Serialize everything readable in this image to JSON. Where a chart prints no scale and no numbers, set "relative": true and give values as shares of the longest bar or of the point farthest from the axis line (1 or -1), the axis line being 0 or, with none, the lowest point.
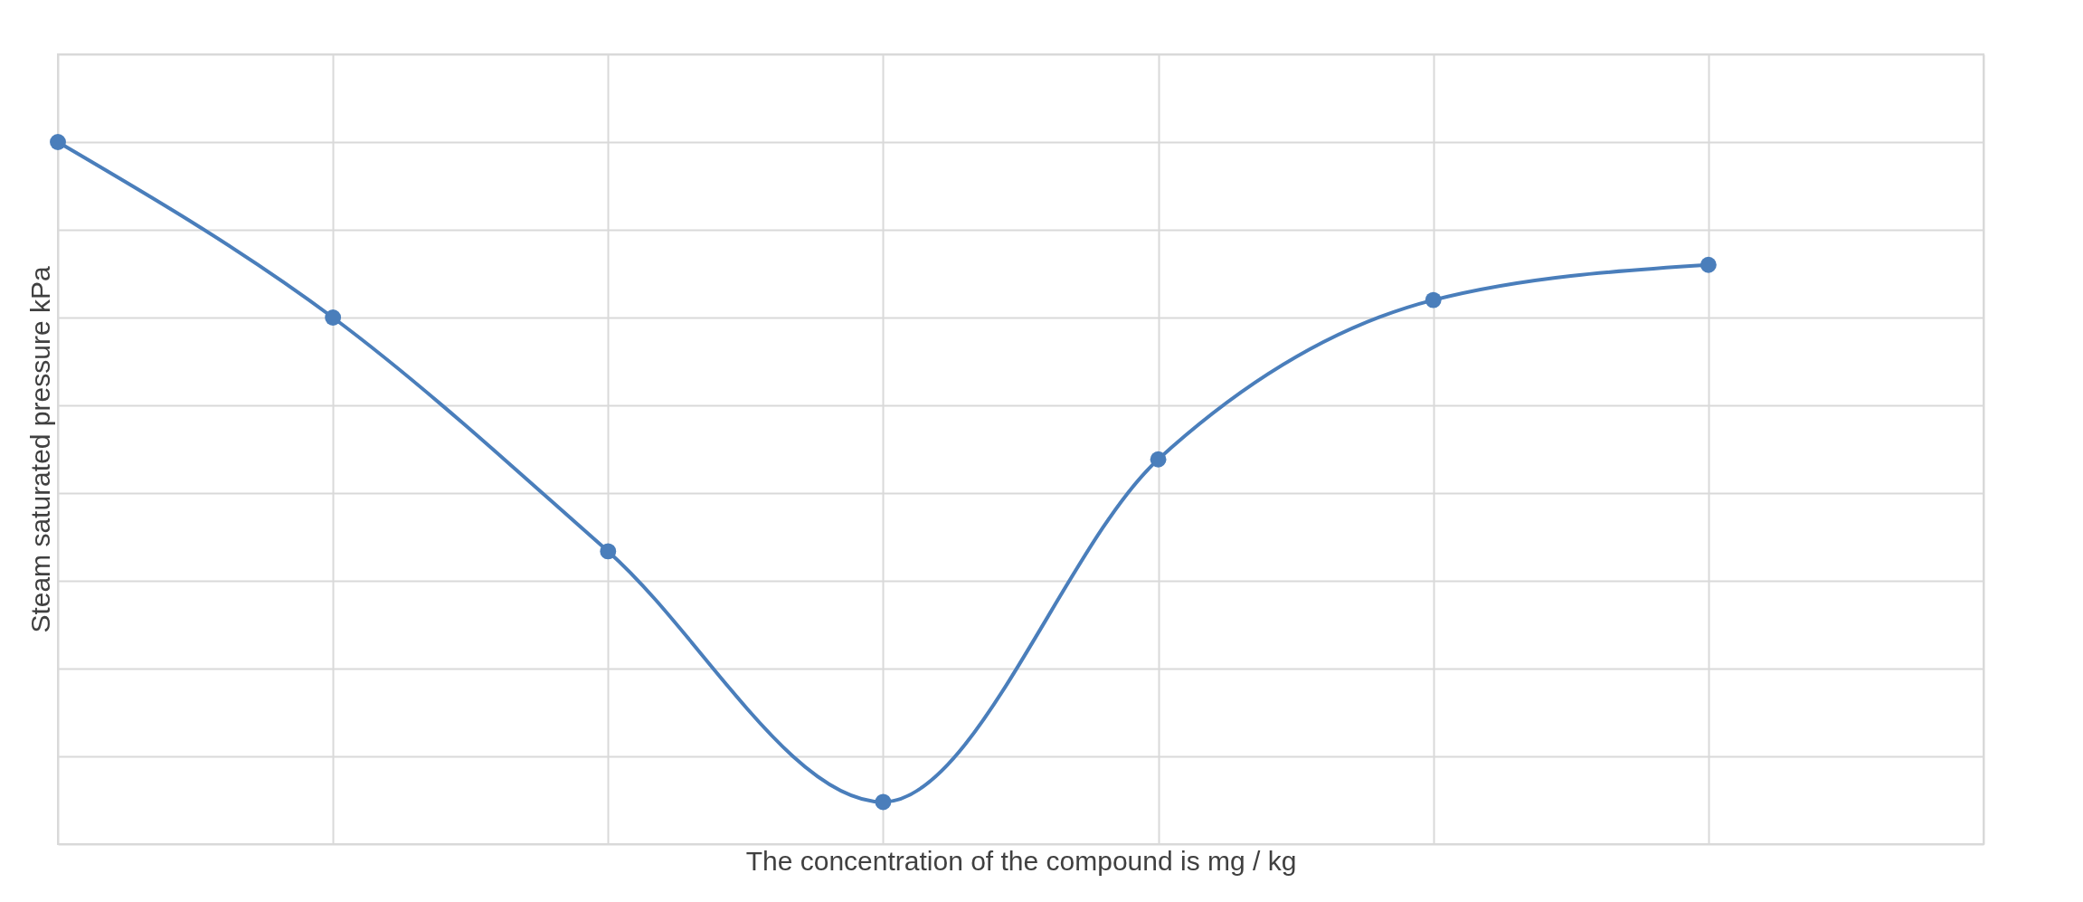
{
  "chart_data": {
    "type": "line",
    "xlabel": "The concentration of the compound is mg / kg",
    "ylabel": "Steam saturated pressure kPa",
    "categories": [
      null,
      null,
      null,
      null,
      null,
      null,
      null,
      null
    ],
    "series": [
      {
        "color": "#4a7ebb",
        "values": [
          1,
          0.75,
          0.417,
          0.06,
          0.548,
          0.775,
          0.825,
          null
        ]
      }
    ],
    "relative": true,
    "grid": true,
    "tick_labels": false,
    "marker": "circle",
    "line_style": "solid",
    "legend": false
  }
}
